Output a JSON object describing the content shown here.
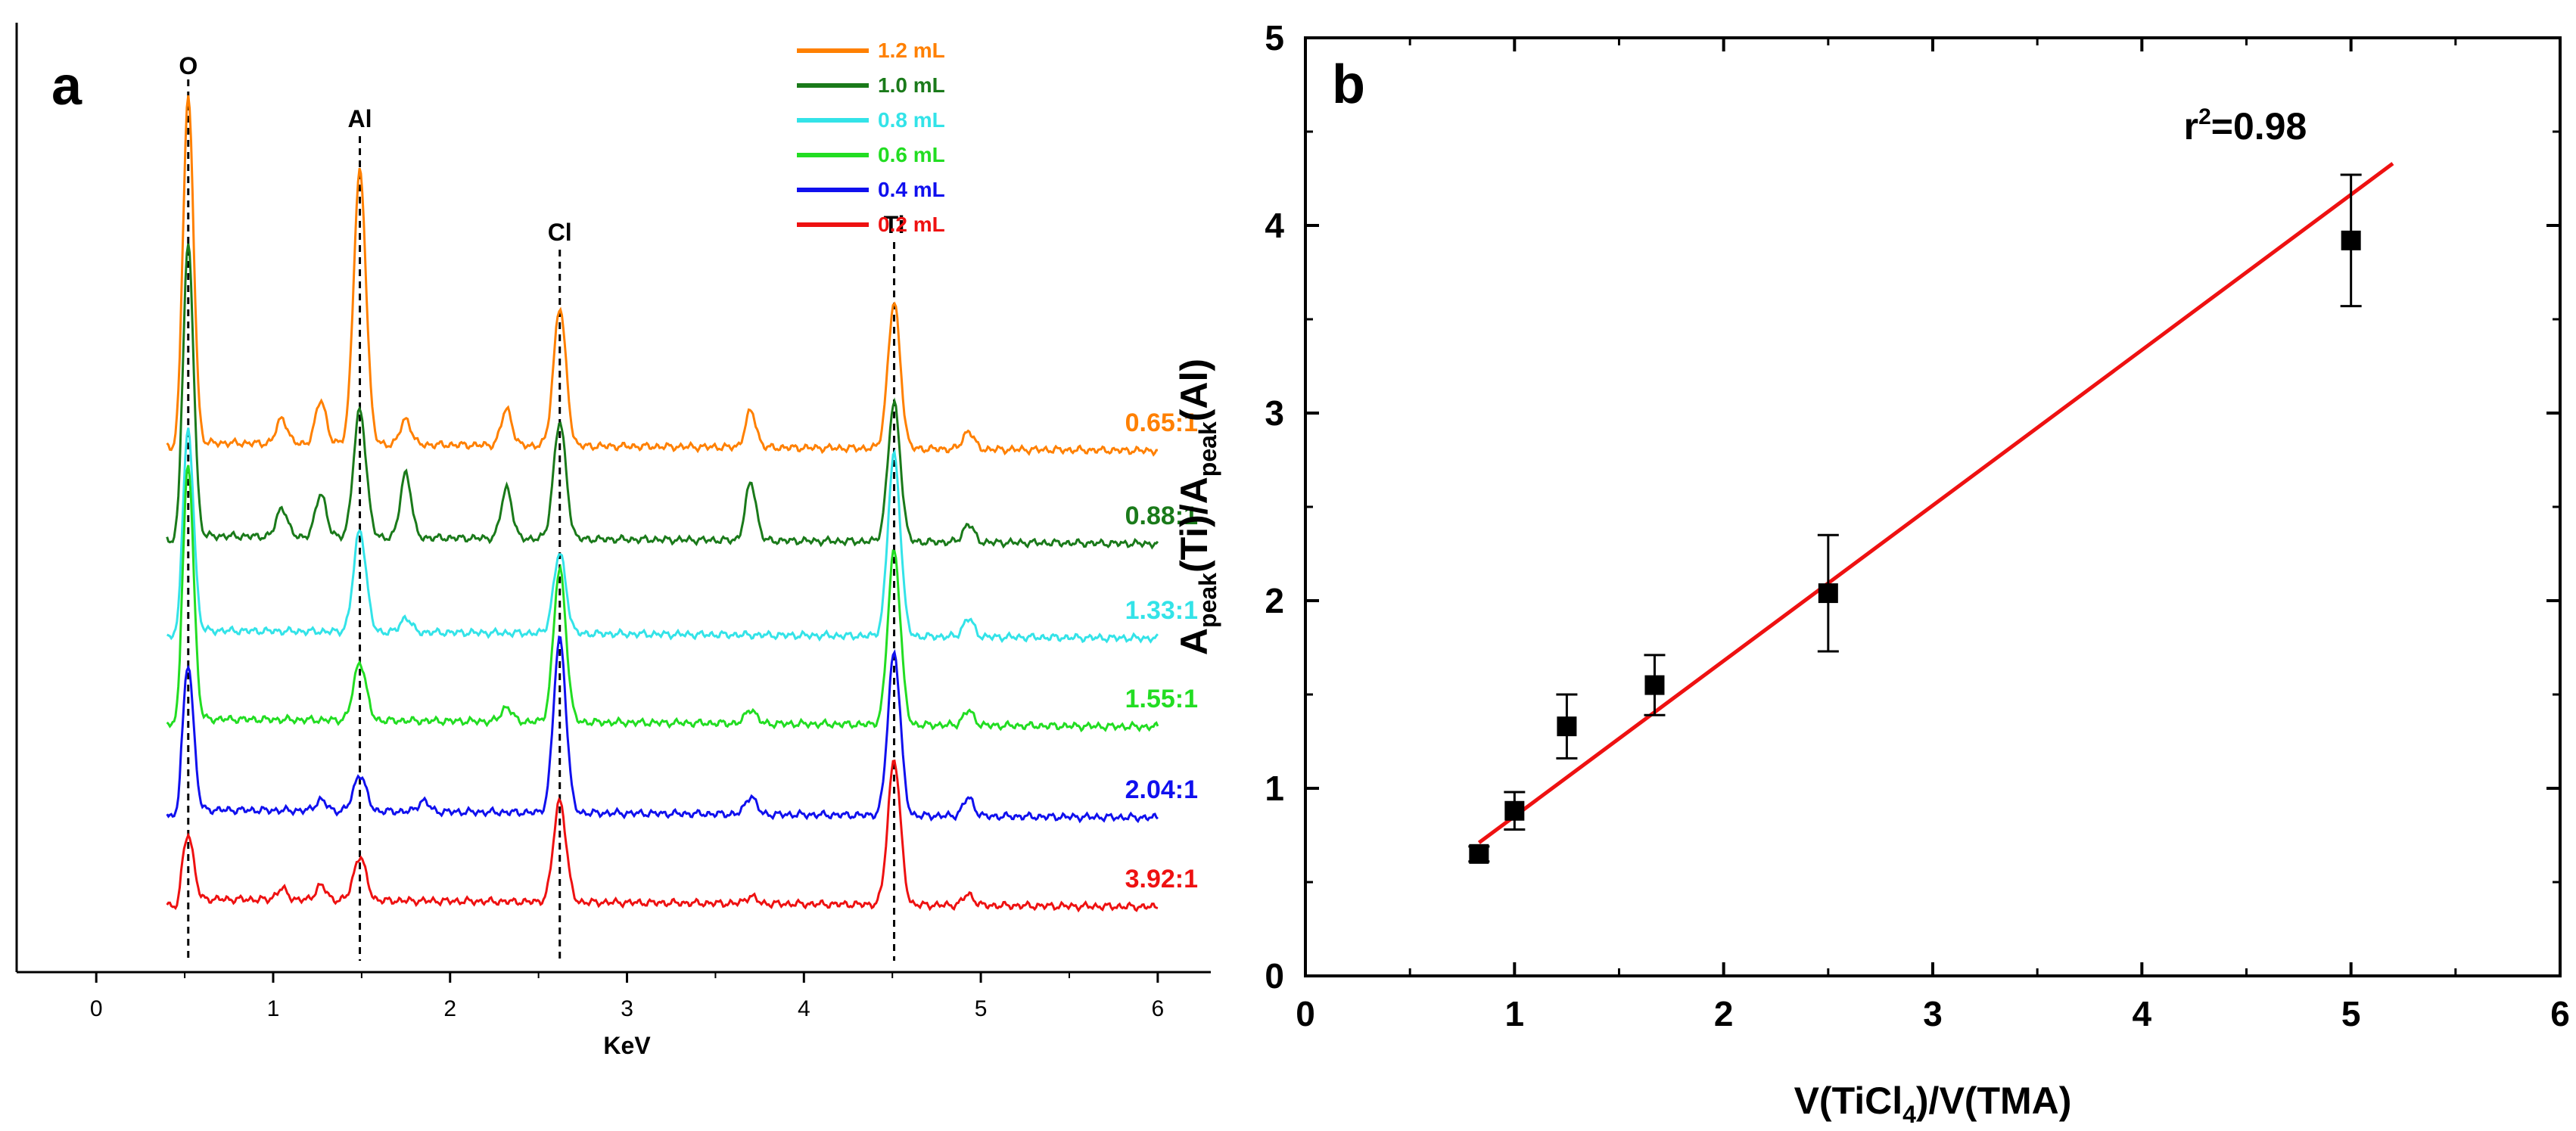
{
  "chart_data": [
    {
      "type": "line",
      "panel_label": "a",
      "title": "",
      "xlabel": "KeV",
      "ylabel": "",
      "xlim": [
        -0.45,
        6.3
      ],
      "x_ticks": [
        "0",
        "1",
        "2",
        "3",
        "4",
        "5",
        "6"
      ],
      "peak_labels": [
        {
          "label": "O",
          "x": 0.52
        },
        {
          "label": "Al",
          "x": 1.49
        },
        {
          "label": "Cl",
          "x": 2.62
        },
        {
          "label": "Ti",
          "x": 4.51
        }
      ],
      "legend_position": "top-right",
      "series": [
        {
          "name": "1.2 mL",
          "ratio": "0.65:1",
          "color": "#FF8000",
          "peaks": {
            "O": 0.95,
            "Al": 0.75,
            "Cl": 0.38,
            "Ti": 0.4
          },
          "minor": [
            [
              1.05,
              0.07
            ],
            [
              1.27,
              0.12
            ],
            [
              1.75,
              0.07
            ],
            [
              2.32,
              0.1
            ],
            [
              3.7,
              0.1
            ],
            [
              4.93,
              0.05
            ]
          ]
        },
        {
          "name": "1.0 mL",
          "ratio": "0.88:1",
          "color": "#1A7A1A",
          "peaks": {
            "O": 0.8,
            "Al": 0.35,
            "Cl": 0.32,
            "Ti": 0.38
          },
          "minor": [
            [
              1.05,
              0.08
            ],
            [
              1.27,
              0.12
            ],
            [
              1.75,
              0.18
            ],
            [
              2.32,
              0.14
            ],
            [
              3.7,
              0.16
            ],
            [
              4.93,
              0.05
            ]
          ]
        },
        {
          "name": "0.8 mL",
          "ratio": "1.33:1",
          "color": "#33E3E8",
          "peaks": {
            "O": 0.55,
            "Al": 0.28,
            "Cl": 0.22,
            "Ti": 0.5
          },
          "minor": [
            [
              1.75,
              0.04
            ],
            [
              4.93,
              0.05
            ]
          ]
        },
        {
          "name": "0.6 mL",
          "ratio": "1.55:1",
          "color": "#22DD22",
          "peaks": {
            "O": 0.7,
            "Al": 0.16,
            "Cl": 0.42,
            "Ti": 0.48
          },
          "minor": [
            [
              2.32,
              0.04
            ],
            [
              3.7,
              0.04
            ],
            [
              4.93,
              0.04
            ]
          ]
        },
        {
          "name": "0.4 mL",
          "ratio": "2.04:1",
          "color": "#1010EE",
          "peaks": {
            "O": 0.4,
            "Al": 0.1,
            "Cl": 0.48,
            "Ti": 0.45
          },
          "minor": [
            [
              1.27,
              0.03
            ],
            [
              1.85,
              0.03
            ],
            [
              3.7,
              0.05
            ],
            [
              4.93,
              0.05
            ]
          ]
        },
        {
          "name": "0.2 mL",
          "ratio": "3.92:1",
          "color": "#EE1111",
          "peaks": {
            "O": 0.18,
            "Al": 0.12,
            "Cl": 0.28,
            "Ti": 0.4
          },
          "minor": [
            [
              1.05,
              0.03
            ],
            [
              1.27,
              0.04
            ],
            [
              3.7,
              0.02
            ],
            [
              4.93,
              0.03
            ]
          ]
        }
      ]
    },
    {
      "type": "scatter",
      "panel_label": "b",
      "title": "",
      "xlabel_parts": {
        "pre": "V(TiCl",
        "sub": "4",
        "post": ")/V(TMA)"
      },
      "ylabel_parts": {
        "a": "A",
        "sub1": "peak",
        "mid": "(Ti)/A",
        "sub2": "peak",
        "post": "(Al)"
      },
      "xlim": [
        0,
        6
      ],
      "ylim": [
        0,
        5
      ],
      "x_ticks": [
        "0",
        "1",
        "2",
        "3",
        "4",
        "5",
        "6"
      ],
      "y_ticks": [
        "0",
        "1",
        "2",
        "3",
        "4",
        "5"
      ],
      "points": [
        {
          "x": 0.83,
          "y": 0.65,
          "err": 0.04
        },
        {
          "x": 1.0,
          "y": 0.88,
          "err": 0.1
        },
        {
          "x": 1.25,
          "y": 1.33,
          "err": 0.17
        },
        {
          "x": 1.67,
          "y": 1.55,
          "err": 0.16
        },
        {
          "x": 2.5,
          "y": 2.04,
          "err": 0.31
        },
        {
          "x": 5.0,
          "y": 3.92,
          "err": 0.35
        }
      ],
      "fit": {
        "x": [
          0.83,
          5.2
        ],
        "y": [
          0.71,
          4.33
        ],
        "color": "#EE1111"
      },
      "annotation": {
        "pre": "r",
        "sup": "2",
        "post": "=0.98",
        "x": 4.2,
        "y": 4.46
      }
    }
  ]
}
